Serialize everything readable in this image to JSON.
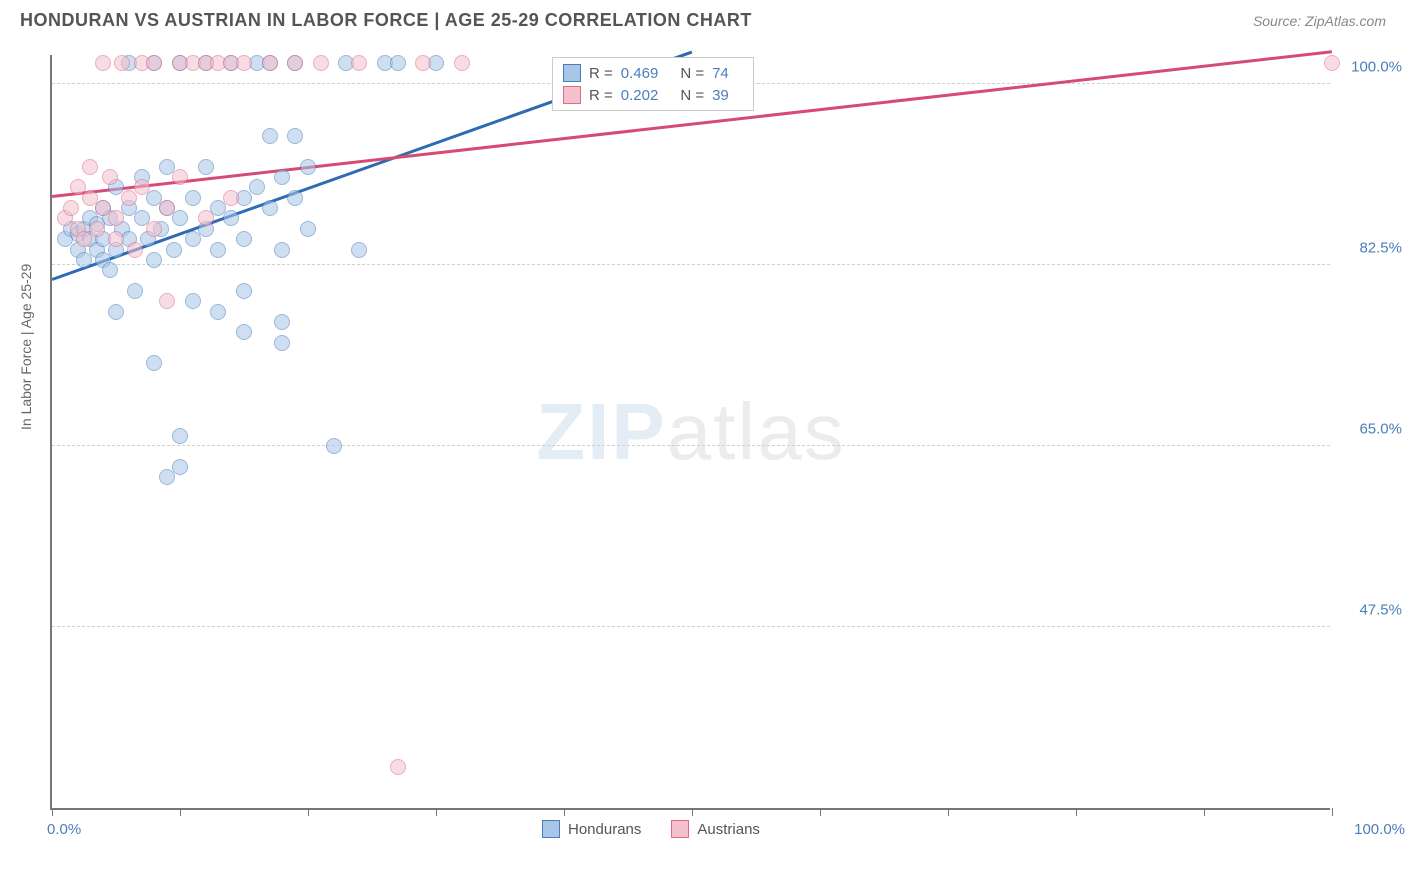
{
  "title": "HONDURAN VS AUSTRIAN IN LABOR FORCE | AGE 25-29 CORRELATION CHART",
  "source": "Source: ZipAtlas.com",
  "y_axis_label": "In Labor Force | Age 25-29",
  "watermark_zip": "ZIP",
  "watermark_atlas": "atlas",
  "chart": {
    "type": "scatter",
    "x_domain": [
      0,
      100
    ],
    "y_domain": [
      30,
      103
    ],
    "x_min_label": "0.0%",
    "x_max_label": "100.0%",
    "y_ticks": [
      47.5,
      65.0,
      82.5,
      100.0
    ],
    "y_tick_labels": [
      "47.5%",
      "65.0%",
      "82.5%",
      "100.0%"
    ],
    "x_tick_positions": [
      0,
      10,
      20,
      30,
      40,
      50,
      60,
      70,
      80,
      90,
      100
    ],
    "background_color": "#ffffff",
    "grid_color": "#d0d0d0",
    "axis_color": "#777777",
    "marker_radius": 8,
    "marker_opacity": 0.55,
    "series": [
      {
        "name": "Hondurans",
        "color_fill": "#a8c6e8",
        "color_stroke": "#4a7ebb",
        "r_value": "0.469",
        "n_value": "74",
        "trend": {
          "x1": 0,
          "y1": 81,
          "x2": 50,
          "y2": 103,
          "color": "#2e6bb3"
        },
        "points": [
          [
            1,
            85
          ],
          [
            1.5,
            86
          ],
          [
            2,
            84
          ],
          [
            2,
            85.5
          ],
          [
            2.5,
            83
          ],
          [
            2.5,
            86
          ],
          [
            3,
            85
          ],
          [
            3,
            87
          ],
          [
            3.5,
            84
          ],
          [
            3.5,
            86.5
          ],
          [
            4,
            83
          ],
          [
            4,
            85
          ],
          [
            4,
            88
          ],
          [
            4.5,
            82
          ],
          [
            4.5,
            87
          ],
          [
            5,
            84
          ],
          [
            5,
            90
          ],
          [
            5,
            78
          ],
          [
            5.5,
            86
          ],
          [
            6,
            85
          ],
          [
            6,
            88
          ],
          [
            6,
            102
          ],
          [
            6.5,
            80
          ],
          [
            7,
            87
          ],
          [
            7,
            91
          ],
          [
            7.5,
            85
          ],
          [
            8,
            83
          ],
          [
            8,
            89
          ],
          [
            8,
            102
          ],
          [
            8,
            73
          ],
          [
            8.5,
            86
          ],
          [
            9,
            88
          ],
          [
            9,
            92
          ],
          [
            9,
            62
          ],
          [
            9.5,
            84
          ],
          [
            10,
            87
          ],
          [
            10,
            102
          ],
          [
            10,
            66
          ],
          [
            10,
            63
          ],
          [
            11,
            85
          ],
          [
            11,
            89
          ],
          [
            11,
            79
          ],
          [
            12,
            86
          ],
          [
            12,
            92
          ],
          [
            12,
            102
          ],
          [
            13,
            84
          ],
          [
            13,
            88
          ],
          [
            13,
            78
          ],
          [
            14,
            87
          ],
          [
            14,
            102
          ],
          [
            15,
            85
          ],
          [
            15,
            89
          ],
          [
            15,
            76
          ],
          [
            15,
            80
          ],
          [
            16,
            90
          ],
          [
            16,
            102
          ],
          [
            17,
            88
          ],
          [
            17,
            95
          ],
          [
            17,
            102
          ],
          [
            18,
            84
          ],
          [
            18,
            91
          ],
          [
            18,
            75
          ],
          [
            18,
            77
          ],
          [
            19,
            89
          ],
          [
            19,
            95
          ],
          [
            19,
            102
          ],
          [
            20,
            86
          ],
          [
            20,
            92
          ],
          [
            22,
            65
          ],
          [
            23,
            102
          ],
          [
            24,
            84
          ],
          [
            26,
            102
          ],
          [
            27,
            102
          ],
          [
            30,
            102
          ]
        ]
      },
      {
        "name": "Austrians",
        "color_fill": "#f4c0cd",
        "color_stroke": "#e06a8a",
        "r_value": "0.202",
        "n_value": "39",
        "trend": {
          "x1": 0,
          "y1": 89,
          "x2": 100,
          "y2": 103,
          "color": "#d84a76"
        },
        "points": [
          [
            1,
            87
          ],
          [
            1.5,
            88
          ],
          [
            2,
            86
          ],
          [
            2,
            90
          ],
          [
            2.5,
            85
          ],
          [
            3,
            89
          ],
          [
            3,
            92
          ],
          [
            3.5,
            86
          ],
          [
            4,
            88
          ],
          [
            4,
            102
          ],
          [
            4.5,
            91
          ],
          [
            5,
            85
          ],
          [
            5,
            87
          ],
          [
            5.5,
            102
          ],
          [
            6,
            89
          ],
          [
            6.5,
            84
          ],
          [
            7,
            90
          ],
          [
            7,
            102
          ],
          [
            8,
            86
          ],
          [
            8,
            102
          ],
          [
            9,
            88
          ],
          [
            9,
            79
          ],
          [
            10,
            91
          ],
          [
            10,
            102
          ],
          [
            11,
            102
          ],
          [
            12,
            87
          ],
          [
            12,
            102
          ],
          [
            13,
            102
          ],
          [
            14,
            89
          ],
          [
            14,
            102
          ],
          [
            15,
            102
          ],
          [
            17,
            102
          ],
          [
            19,
            102
          ],
          [
            21,
            102
          ],
          [
            24,
            102
          ],
          [
            27,
            34
          ],
          [
            29,
            102
          ],
          [
            32,
            102
          ],
          [
            100,
            102
          ]
        ]
      }
    ],
    "legend_bottom": [
      {
        "label": "Hondurans",
        "fill": "#a8c6e8",
        "stroke": "#4a7ebb"
      },
      {
        "label": "Austrians",
        "fill": "#f4c0cd",
        "stroke": "#e06a8a"
      }
    ]
  }
}
